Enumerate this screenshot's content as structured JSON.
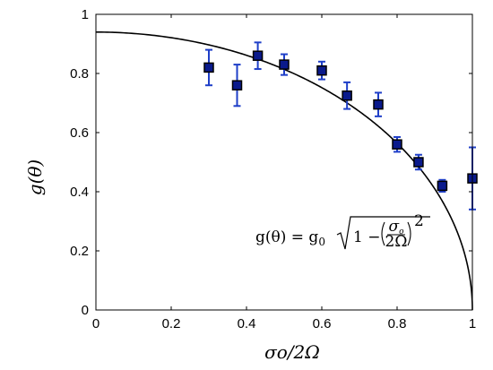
{
  "chart_data": {
    "type": "scatter",
    "title": "",
    "xlabel": "σo/2Ω",
    "ylabel": "g(θ)",
    "xlim": [
      0,
      1
    ],
    "ylim": [
      0,
      1
    ],
    "xticks": [
      "0",
      "0.2",
      "0.4",
      "0.6",
      "0.8",
      "1"
    ],
    "yticks": [
      "0",
      "0.2",
      "0.4",
      "0.6",
      "0.8",
      "1"
    ],
    "grid": false,
    "series": [
      {
        "kind": "points_with_errorbars",
        "marker": "square",
        "color": "#0a1a8c",
        "errorbar_color": "#1f3fc8",
        "x": [
          0.3,
          0.375,
          0.43,
          0.5,
          0.6,
          0.667,
          0.75,
          0.8,
          0.857,
          0.92,
          1.0
        ],
        "y": [
          0.82,
          0.76,
          0.86,
          0.83,
          0.81,
          0.725,
          0.695,
          0.56,
          0.5,
          0.42,
          0.445
        ],
        "yerr": [
          0.06,
          0.07,
          0.045,
          0.035,
          0.03,
          0.045,
          0.04,
          0.025,
          0.025,
          0.02,
          0.105
        ]
      },
      {
        "kind": "curve",
        "color": "#000000",
        "g0": 0.94,
        "formula": "g(θ) = g0 sqrt(1 - (σo/2Ω)^2)"
      }
    ],
    "annotation": {
      "lhs": "g(θ) = g",
      "g0_sub": "0",
      "sigma": "σ",
      "sigma_sub": "o",
      "denom": "2Ω",
      "exponent": "2",
      "minus_part": "1 −"
    }
  }
}
